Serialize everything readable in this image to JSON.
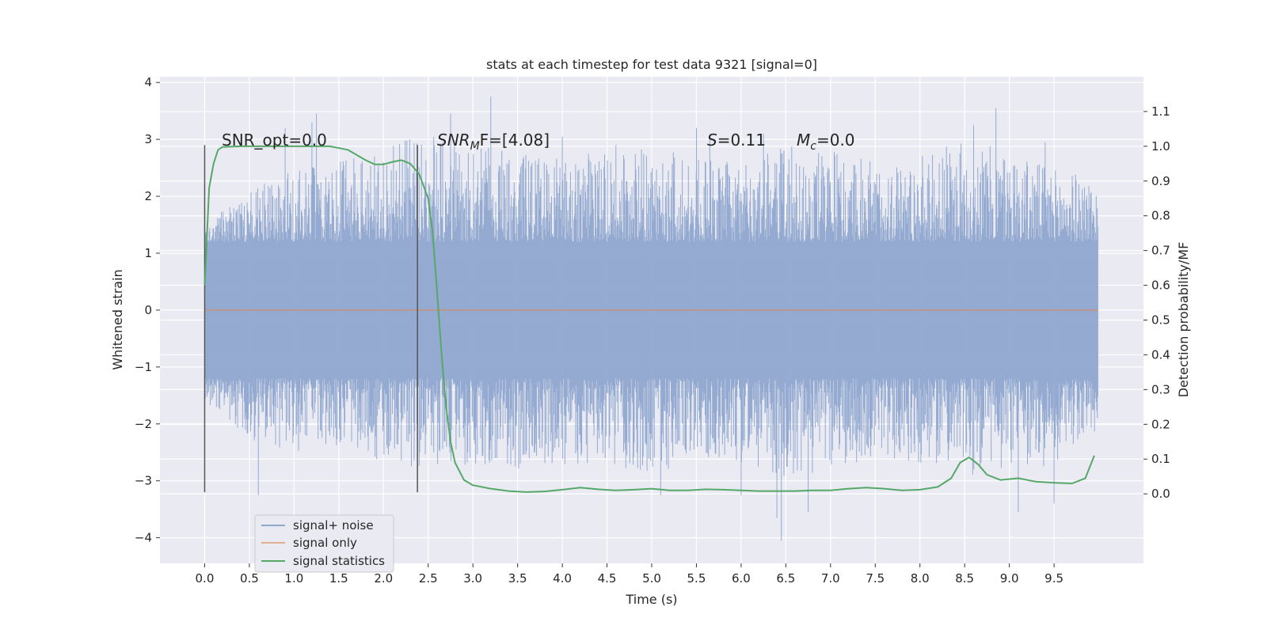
{
  "chart_data": {
    "type": "line",
    "title": "stats at each timestep for test data 9321 [signal=0]",
    "xlabel": "Time (s)",
    "ylabel_left": "Whitened strain",
    "ylabel_right": "Detection probability/MF",
    "xlim": [
      -0.5,
      10.5
    ],
    "ylim_left": [
      -4.45,
      4.1
    ],
    "ylim_right": [
      -0.2,
      1.2
    ],
    "x_ticks": [
      "0.0",
      "0.5",
      "1.0",
      "1.5",
      "2.0",
      "2.5",
      "3.0",
      "3.5",
      "4.0",
      "4.5",
      "5.0",
      "5.5",
      "6.0",
      "6.5",
      "7.0",
      "7.5",
      "8.0",
      "8.5",
      "9.0",
      "9.5"
    ],
    "y_ticks_left": [
      "4",
      "3",
      "2",
      "1",
      "0",
      "−1",
      "−2",
      "−3",
      "−4"
    ],
    "y_ticks_right": [
      "1.1",
      "1.0",
      "0.9",
      "0.8",
      "0.7",
      "0.6",
      "0.5",
      "0.4",
      "0.3",
      "0.2",
      "0.1",
      "0.0"
    ],
    "grid": true,
    "legend_position": "lower-left",
    "annotations": {
      "snr_opt": "SNR_opt=0.0",
      "snr_mf_main": "SNR",
      "snr_mf_sub": "M",
      "snr_mf_rest": "F=[4.08]",
      "s_main": "S",
      "s_rest": "=0.11",
      "mc_main": "M",
      "mc_sub": "c",
      "mc_rest": "=0.0"
    },
    "vertical_markers_x": [
      0.0,
      2.38
    ],
    "vertical_markers_range": [
      -3.2,
      2.9
    ],
    "series": [
      {
        "name": "signal+ noise",
        "color": "#8fa6cf",
        "axis": "left",
        "x_range": [
          0.0,
          9.99
        ],
        "envelope_upper": [
          [
            0.0,
            1.5
          ],
          [
            0.5,
            2.1
          ],
          [
            1.0,
            2.5
          ],
          [
            1.5,
            2.6
          ],
          [
            2.0,
            2.8
          ],
          [
            2.5,
            3.2
          ],
          [
            3.0,
            2.9
          ],
          [
            3.5,
            2.8
          ],
          [
            4.0,
            2.7
          ],
          [
            4.5,
            2.8
          ],
          [
            5.0,
            2.9
          ],
          [
            5.5,
            2.7
          ],
          [
            6.0,
            2.6
          ],
          [
            6.5,
            2.9
          ],
          [
            7.0,
            2.8
          ],
          [
            7.5,
            2.6
          ],
          [
            8.0,
            2.7
          ],
          [
            8.5,
            3.0
          ],
          [
            9.0,
            2.8
          ],
          [
            9.5,
            2.5
          ],
          [
            9.99,
            2.3
          ]
        ],
        "envelope_lower": [
          [
            0.0,
            -1.6
          ],
          [
            0.5,
            -2.3
          ],
          [
            1.0,
            -2.5
          ],
          [
            1.5,
            -2.4
          ],
          [
            2.0,
            -2.7
          ],
          [
            2.5,
            -2.8
          ],
          [
            3.0,
            -2.7
          ],
          [
            3.5,
            -2.8
          ],
          [
            4.0,
            -2.8
          ],
          [
            4.5,
            -2.7
          ],
          [
            5.0,
            -2.9
          ],
          [
            5.5,
            -2.6
          ],
          [
            6.0,
            -2.7
          ],
          [
            6.5,
            -3.0
          ],
          [
            7.0,
            -2.8
          ],
          [
            7.5,
            -2.6
          ],
          [
            8.0,
            -2.7
          ],
          [
            8.5,
            -2.9
          ],
          [
            9.0,
            -2.9
          ],
          [
            9.5,
            -2.7
          ],
          [
            9.99,
            -2.1
          ]
        ],
        "spikes": [
          [
            0.6,
            -3.25
          ],
          [
            0.9,
            3.2
          ],
          [
            1.2,
            3.3
          ],
          [
            1.25,
            3.45
          ],
          [
            2.75,
            3.45
          ],
          [
            3.2,
            3.75
          ],
          [
            4.0,
            3.05
          ],
          [
            4.6,
            2.9
          ],
          [
            5.1,
            -3.25
          ],
          [
            5.5,
            3.2
          ],
          [
            5.65,
            3.1
          ],
          [
            6.0,
            -3.25
          ],
          [
            6.25,
            3.1
          ],
          [
            6.4,
            -3.65
          ],
          [
            6.45,
            -4.05
          ],
          [
            6.75,
            -3.55
          ],
          [
            8.6,
            3.25
          ],
          [
            8.85,
            3.55
          ],
          [
            9.1,
            -3.55
          ],
          [
            9.5,
            -3.4
          ],
          [
            9.4,
            2.95
          ]
        ]
      },
      {
        "name": "signal only",
        "color": "#dd8452",
        "axis": "left",
        "x": [
          0.0,
          9.99
        ],
        "y": [
          0.0,
          0.0
        ]
      },
      {
        "name": "signal statistics",
        "color": "#55a868",
        "axis": "right",
        "x": [
          0.0,
          0.05,
          0.1,
          0.15,
          0.2,
          0.4,
          0.6,
          0.8,
          1.0,
          1.2,
          1.4,
          1.6,
          1.8,
          1.9,
          2.0,
          2.1,
          2.2,
          2.3,
          2.4,
          2.5,
          2.55,
          2.6,
          2.65,
          2.7,
          2.75,
          2.8,
          2.9,
          3.0,
          3.2,
          3.4,
          3.6,
          3.8,
          4.0,
          4.2,
          4.4,
          4.6,
          4.8,
          5.0,
          5.2,
          5.4,
          5.6,
          5.8,
          6.0,
          6.2,
          6.4,
          6.6,
          6.8,
          7.0,
          7.2,
          7.4,
          7.6,
          7.8,
          8.0,
          8.2,
          8.35,
          8.45,
          8.55,
          8.65,
          8.75,
          8.9,
          9.1,
          9.3,
          9.5,
          9.7,
          9.85,
          9.95
        ],
        "y": [
          0.6,
          0.88,
          0.95,
          0.99,
          0.998,
          1.0,
          1.0,
          1.0,
          1.0,
          1.0,
          1.0,
          0.99,
          0.96,
          0.948,
          0.948,
          0.955,
          0.96,
          0.95,
          0.92,
          0.85,
          0.75,
          0.58,
          0.4,
          0.25,
          0.15,
          0.09,
          0.04,
          0.025,
          0.015,
          0.008,
          0.005,
          0.007,
          0.012,
          0.018,
          0.013,
          0.01,
          0.012,
          0.015,
          0.01,
          0.01,
          0.013,
          0.012,
          0.01,
          0.008,
          0.008,
          0.008,
          0.01,
          0.01,
          0.015,
          0.018,
          0.015,
          0.01,
          0.012,
          0.02,
          0.045,
          0.09,
          0.105,
          0.085,
          0.055,
          0.04,
          0.045,
          0.035,
          0.032,
          0.03,
          0.045,
          0.11
        ]
      }
    ]
  }
}
